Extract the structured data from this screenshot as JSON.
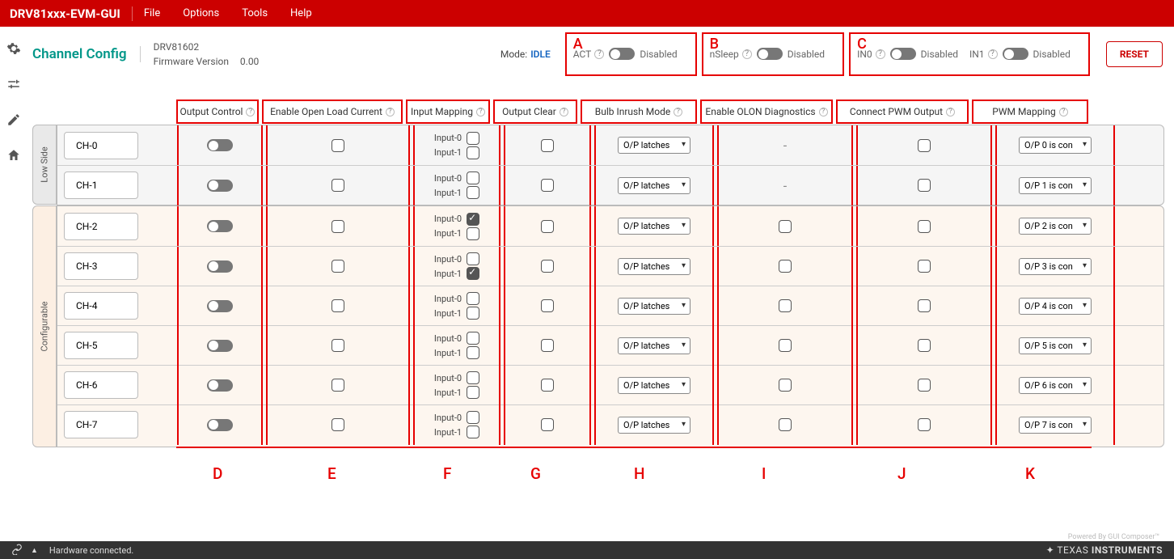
{
  "brand": "DRV81xxx-EVM-GUI",
  "menu": [
    "File",
    "Options",
    "Tools",
    "Help"
  ],
  "page_title": "Channel Config",
  "device": {
    "part": "DRV81602",
    "fw_label": "Firmware Version",
    "fw_ver": "0.00"
  },
  "mode": {
    "label": "Mode:",
    "value": "IDLE"
  },
  "top_controls": [
    {
      "callout": "A",
      "items": [
        {
          "label": "ACT",
          "state": "Disabled"
        }
      ]
    },
    {
      "callout": "B",
      "items": [
        {
          "label": "nSleep",
          "state": "Disabled"
        }
      ]
    },
    {
      "callout": "C",
      "items": [
        {
          "label": "IN0",
          "state": "Disabled"
        },
        {
          "label": "IN1",
          "state": "Disabled"
        }
      ]
    }
  ],
  "reset": "RESET",
  "columns": [
    {
      "label": "Output Control",
      "callout": "D"
    },
    {
      "label": "Enable Open Load Current",
      "callout": "E"
    },
    {
      "label": "Input Mapping",
      "callout": "F"
    },
    {
      "label": "Output Clear",
      "callout": "G"
    },
    {
      "label": "Bulb Inrush Mode",
      "callout": "H"
    },
    {
      "label": "Enable OLON Diagnostics",
      "callout": "I"
    },
    {
      "label": "Connect PWM Output",
      "callout": "J"
    },
    {
      "label": "PWM Mapping",
      "callout": "K"
    }
  ],
  "groups": [
    {
      "key": "ls",
      "label": "Low Side"
    },
    {
      "key": "cf",
      "label": "Configurable"
    }
  ],
  "input_labels": [
    "Input-0",
    "Input-1"
  ],
  "channels": [
    {
      "name": "CH-0",
      "group": "ls",
      "out": false,
      "olc": false,
      "in0": false,
      "in1": false,
      "clear": false,
      "bulb": "O/P latches",
      "olon": "-",
      "pwm": false,
      "pwmmap": "O/P 0 is con"
    },
    {
      "name": "CH-1",
      "group": "ls",
      "out": false,
      "olc": false,
      "in0": false,
      "in1": false,
      "clear": false,
      "bulb": "O/P latches",
      "olon": "-",
      "pwm": false,
      "pwmmap": "O/P 1 is con"
    },
    {
      "name": "CH-2",
      "group": "cf",
      "out": false,
      "olc": false,
      "in0": true,
      "in1": false,
      "clear": false,
      "bulb": "O/P latches",
      "olon": "cb",
      "pwm": false,
      "pwmmap": "O/P 2 is con"
    },
    {
      "name": "CH-3",
      "group": "cf",
      "out": false,
      "olc": false,
      "in0": false,
      "in1": true,
      "clear": false,
      "bulb": "O/P latches",
      "olon": "cb",
      "pwm": false,
      "pwmmap": "O/P 3 is con"
    },
    {
      "name": "CH-4",
      "group": "cf",
      "out": false,
      "olc": false,
      "in0": false,
      "in1": false,
      "clear": false,
      "bulb": "O/P latches",
      "olon": "cb",
      "pwm": false,
      "pwmmap": "O/P 4 is con"
    },
    {
      "name": "CH-5",
      "group": "cf",
      "out": false,
      "olc": false,
      "in0": false,
      "in1": false,
      "clear": false,
      "bulb": "O/P latches",
      "olon": "cb",
      "pwm": false,
      "pwmmap": "O/P 5 is con"
    },
    {
      "name": "CH-6",
      "group": "cf",
      "out": false,
      "olc": false,
      "in0": false,
      "in1": false,
      "clear": false,
      "bulb": "O/P latches",
      "olon": "cb",
      "pwm": false,
      "pwmmap": "O/P 6 is con"
    },
    {
      "name": "CH-7",
      "group": "cf",
      "out": false,
      "olc": false,
      "in0": false,
      "in1": false,
      "clear": false,
      "bulb": "O/P latches",
      "olon": "cb",
      "pwm": false,
      "pwmmap": "O/P 7 is con"
    }
  ],
  "footer_credit": "Powered By GUI Composer™",
  "status": {
    "text": "Hardware connected.",
    "ti": "TEXAS INSTRUMENTS"
  },
  "colors": {
    "brand_red": "#cc0000",
    "callout_red": "#e60000",
    "teal": "#009688"
  }
}
